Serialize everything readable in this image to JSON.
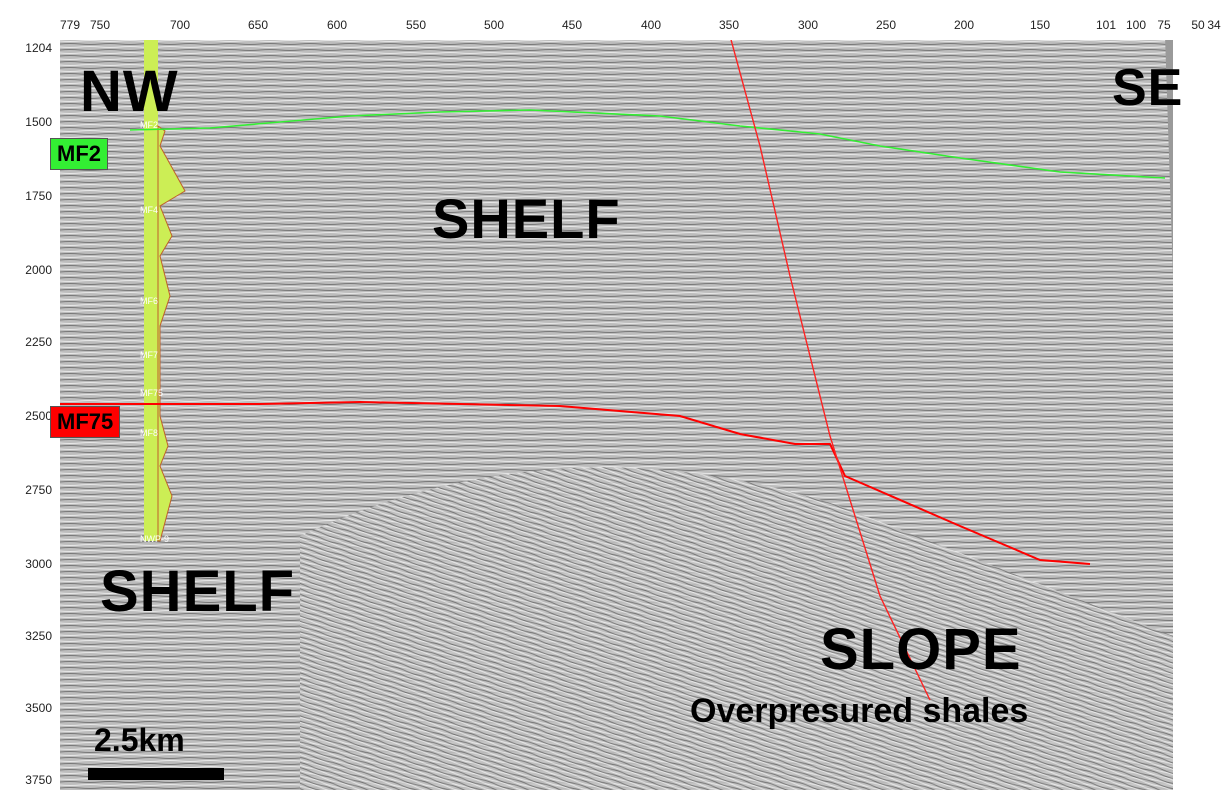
{
  "x_ticks": [
    "779",
    "750",
    "700",
    "650",
    "600",
    "550",
    "500",
    "450",
    "400",
    "350",
    "300",
    "250",
    "200",
    "150",
    "101",
    "100",
    "75",
    "50",
    "34"
  ],
  "y_ticks": [
    "1204",
    "1500",
    "1750",
    "2000",
    "2250",
    "2500",
    "2750",
    "3000",
    "3250",
    "3500",
    "3750"
  ],
  "labels": {
    "nw": "NW",
    "se": "SE",
    "shelf_upper": "SHELF",
    "shelf_lower": "SHELF",
    "slope": "SLOPE",
    "overpressured": "Overpresured shales",
    "mf2": "MF2",
    "mf75": "MF75",
    "scale": "2.5km"
  },
  "well": {
    "markers": [
      "MF2",
      "MF4",
      "MF6",
      "MF7",
      "MF75",
      "MF8",
      "NWP-9"
    ]
  },
  "horizons": {
    "mf2_color": "#33ee33",
    "mf75_color": "#ff0000",
    "fault_color": "#ff2222"
  }
}
